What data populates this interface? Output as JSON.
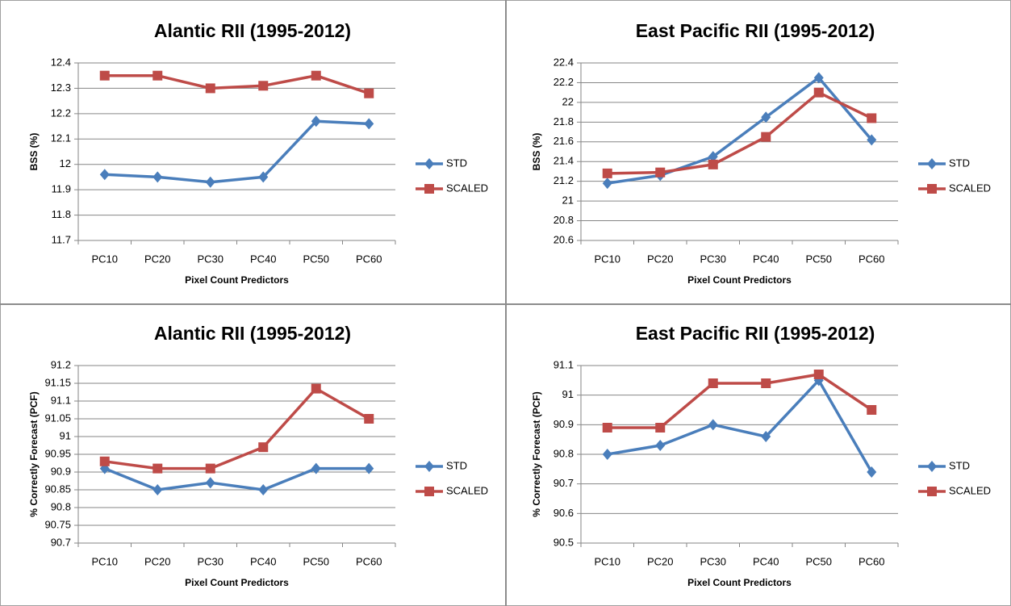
{
  "chart_data": [
    {
      "type": "line",
      "title": "Alantic RII (1995-2012)",
      "x_label": "Pixel Count Predictors",
      "y_label": "BSS (%)",
      "categories": [
        "PC10",
        "PC20",
        "PC30",
        "PC40",
        "PC50",
        "PC60"
      ],
      "series": [
        {
          "name": "STD",
          "color": "#4a7ebb",
          "marker": "diamond",
          "values": [
            11.96,
            11.95,
            11.93,
            11.95,
            12.17,
            12.16
          ]
        },
        {
          "name": "SCALED",
          "color": "#be4b48",
          "marker": "square",
          "values": [
            12.35,
            12.35,
            12.3,
            12.31,
            12.35,
            12.28
          ]
        }
      ],
      "ylim": [
        11.7,
        12.4
      ],
      "yticks": [
        11.7,
        11.8,
        11.9,
        12,
        12.1,
        12.2,
        12.3,
        12.4
      ],
      "grid": true,
      "legend": "right"
    },
    {
      "type": "line",
      "title": "East Pacific RII (1995-2012)",
      "x_label": "Pixel Count Predictors",
      "y_label": "BSS (%)",
      "categories": [
        "PC10",
        "PC20",
        "PC30",
        "PC40",
        "PC50",
        "PC60"
      ],
      "series": [
        {
          "name": "STD",
          "color": "#4a7ebb",
          "marker": "diamond",
          "values": [
            21.18,
            21.26,
            21.45,
            21.85,
            22.25,
            21.62
          ]
        },
        {
          "name": "SCALED",
          "color": "#be4b48",
          "marker": "square",
          "values": [
            21.28,
            21.29,
            21.37,
            21.65,
            22.1,
            21.84
          ]
        }
      ],
      "ylim": [
        20.6,
        22.4
      ],
      "yticks": [
        20.6,
        20.8,
        21,
        21.2,
        21.4,
        21.6,
        21.8,
        22,
        22.2,
        22.4
      ],
      "grid": true,
      "legend": "right"
    },
    {
      "type": "line",
      "title": "Alantic RII (1995-2012)",
      "x_label": "Pixel Count Predictors",
      "y_label": "% Correctly Forecast (PCF)",
      "categories": [
        "PC10",
        "PC20",
        "PC30",
        "PC40",
        "PC50",
        "PC60"
      ],
      "series": [
        {
          "name": "STD",
          "color": "#4a7ebb",
          "marker": "diamond",
          "values": [
            90.91,
            90.85,
            90.87,
            90.85,
            90.91,
            90.91
          ]
        },
        {
          "name": "SCALED",
          "color": "#be4b48",
          "marker": "square",
          "values": [
            90.93,
            90.91,
            90.91,
            90.97,
            91.135,
            91.05
          ]
        }
      ],
      "ylim": [
        90.7,
        91.2
      ],
      "yticks": [
        90.7,
        90.75,
        90.8,
        90.85,
        90.9,
        90.95,
        91,
        91.05,
        91.1,
        91.15,
        91.2
      ],
      "grid": true,
      "legend": "right"
    },
    {
      "type": "line",
      "title": "East Pacific RII (1995-2012)",
      "x_label": "Pixel Count Predictors",
      "y_label": "% Correctly Forecast (PCF)",
      "categories": [
        "PC10",
        "PC20",
        "PC30",
        "PC40",
        "PC50",
        "PC60"
      ],
      "series": [
        {
          "name": "STD",
          "color": "#4a7ebb",
          "marker": "diamond",
          "values": [
            90.8,
            90.83,
            90.9,
            90.86,
            91.05,
            90.74
          ]
        },
        {
          "name": "SCALED",
          "color": "#be4b48",
          "marker": "square",
          "values": [
            90.89,
            90.89,
            91.04,
            91.04,
            91.07,
            90.95
          ]
        }
      ],
      "ylim": [
        90.5,
        91.1
      ],
      "yticks": [
        90.5,
        90.6,
        90.7,
        90.8,
        90.9,
        91,
        91.1
      ],
      "grid": true,
      "legend": "right"
    }
  ]
}
